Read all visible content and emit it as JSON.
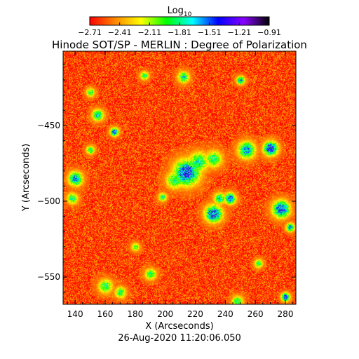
{
  "chart_data": {
    "type": "heatmap",
    "title": "Hinode SOT/SP - MERLIN : Degree of Polarization",
    "timestamp": "26-Aug-2020 11:20:06.050",
    "xlabel": "X (Arcseconds)",
    "ylabel": "Y (Arcseconds)",
    "xlim": [
      132,
      287
    ],
    "ylim": [
      -568,
      -401
    ],
    "xticks": [
      140,
      160,
      180,
      200,
      220,
      240,
      260,
      280
    ],
    "xtick_labels": [
      "140",
      "160",
      "180",
      "200",
      "220",
      "240",
      "260",
      "280"
    ],
    "yticks": [
      -450,
      -500,
      -550
    ],
    "ytick_labels": [
      "−450",
      "−500",
      "−550"
    ],
    "colorbar": {
      "label_base": "Log",
      "label_subscript": "10",
      "range": [
        -2.71,
        -0.91
      ],
      "ticks": [
        -2.71,
        -2.41,
        -2.11,
        -1.81,
        -1.51,
        -1.21,
        -0.91
      ],
      "tick_labels": [
        "−2.71",
        "−2.41",
        "−2.11",
        "−1.81",
        "−1.51",
        "−1.21",
        "−0.91"
      ],
      "colors": [
        "#ff0000",
        "#ff8800",
        "#ffff00",
        "#00ff00",
        "#00ffff",
        "#0000ff",
        "#8800ff",
        "#000000"
      ]
    },
    "background_value": -2.6,
    "features": [
      {
        "x": 214,
        "y": -481,
        "r": 9,
        "v": -1.3
      },
      {
        "x": 222,
        "y": -474,
        "r": 7,
        "v": -1.7
      },
      {
        "x": 232,
        "y": -472,
        "r": 6,
        "v": -1.8
      },
      {
        "x": 206,
        "y": -486,
        "r": 6,
        "v": -1.8
      },
      {
        "x": 254,
        "y": -466,
        "r": 6,
        "v": -1.5
      },
      {
        "x": 270,
        "y": -465,
        "r": 5,
        "v": -1.2
      },
      {
        "x": 243,
        "y": -498,
        "r": 4,
        "v": -1.4
      },
      {
        "x": 232,
        "y": -508,
        "r": 6,
        "v": -1.3
      },
      {
        "x": 236,
        "y": -498,
        "r": 4,
        "v": -1.7
      },
      {
        "x": 277,
        "y": -505,
        "r": 6,
        "v": -1.3
      },
      {
        "x": 140,
        "y": -485,
        "r": 5,
        "v": -1.5
      },
      {
        "x": 138,
        "y": -498,
        "r": 4,
        "v": -1.8
      },
      {
        "x": 155,
        "y": -443,
        "r": 4,
        "v": -1.6
      },
      {
        "x": 150,
        "y": -428,
        "r": 3,
        "v": -1.8
      },
      {
        "x": 212,
        "y": -418,
        "r": 4,
        "v": -1.7
      },
      {
        "x": 250,
        "y": -420,
        "r": 3,
        "v": -1.6
      },
      {
        "x": 186,
        "y": -417,
        "r": 3,
        "v": -1.8
      },
      {
        "x": 160,
        "y": -556,
        "r": 5,
        "v": -1.8
      },
      {
        "x": 170,
        "y": -560,
        "r": 4,
        "v": -1.8
      },
      {
        "x": 190,
        "y": -548,
        "r": 4,
        "v": -1.8
      },
      {
        "x": 283,
        "y": -517,
        "r": 3,
        "v": -1.5
      },
      {
        "x": 280,
        "y": -563,
        "r": 3,
        "v": -1.3
      },
      {
        "x": 248,
        "y": -566,
        "r": 4,
        "v": -1.8
      },
      {
        "x": 166,
        "y": -454,
        "r": 3,
        "v": -1.4
      },
      {
        "x": 150,
        "y": -466,
        "r": 3,
        "v": -1.8
      },
      {
        "x": 198,
        "y": -497,
        "r": 3,
        "v": -1.8
      },
      {
        "x": 262,
        "y": -541,
        "r": 3,
        "v": -1.8
      },
      {
        "x": 180,
        "y": -530,
        "r": 3,
        "v": -1.9
      }
    ]
  }
}
